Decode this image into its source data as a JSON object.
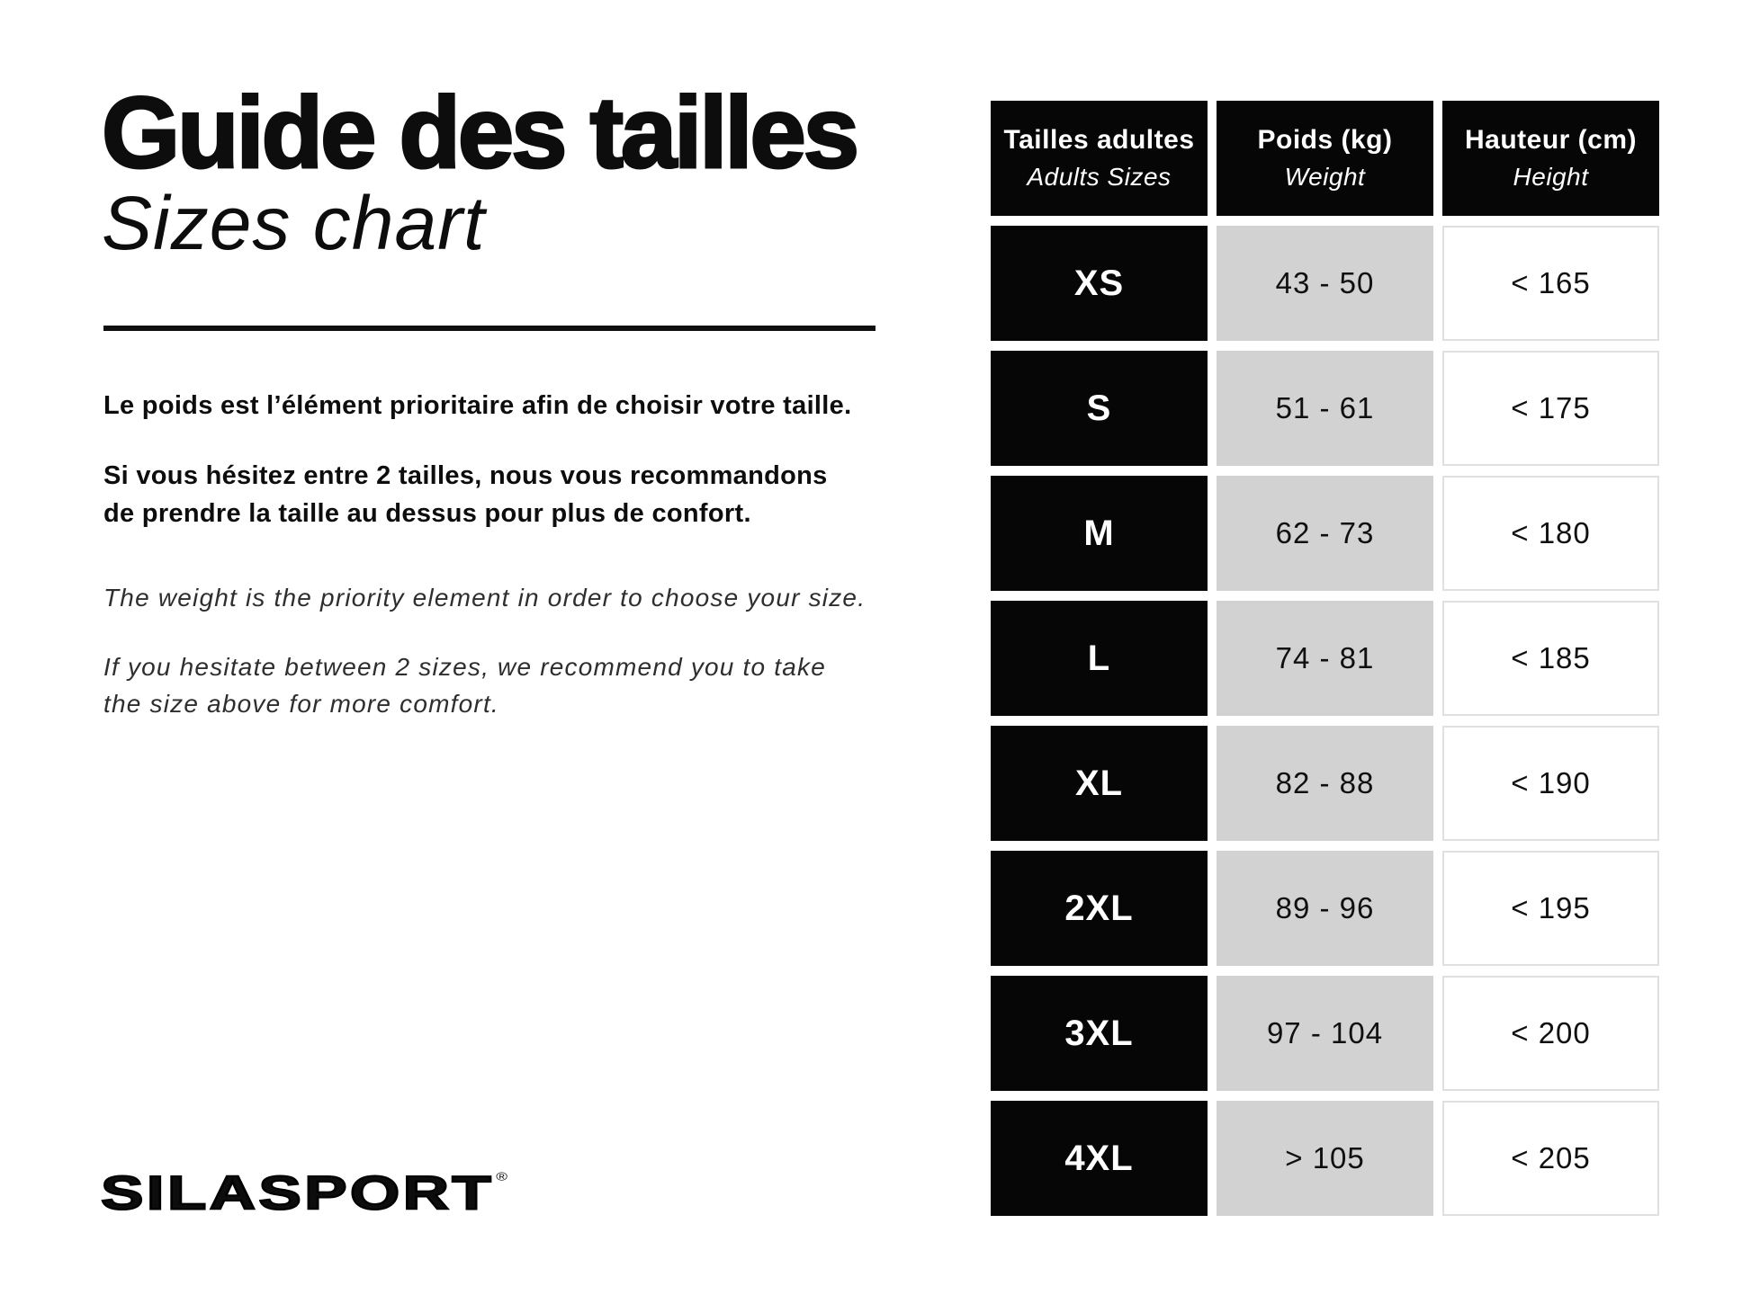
{
  "page": {
    "title_fr": "Guide des tailles",
    "title_en": "Sizes chart"
  },
  "intro": {
    "fr1": "Le poids est l’élément prioritaire afin de choisir votre taille.",
    "fr2_lines": [
      "Si vous hésitez entre 2 tailles, nous vous recommandons",
      "de prendre la taille au dessus pour plus de confort."
    ],
    "en1": "The weight is the priority element in order to choose your size.",
    "en2_lines": [
      "If you hesitate between 2 sizes, we recommend you to take",
      "the size above for more comfort."
    ]
  },
  "table": {
    "headers": [
      {
        "fr": "Tailles adultes",
        "en": "Adults Sizes"
      },
      {
        "fr": "Poids (kg)",
        "en": "Weight"
      },
      {
        "fr": "Hauteur (cm)",
        "en": "Height"
      }
    ],
    "rows": [
      {
        "size": "XS",
        "weight": "43 - 50",
        "height": "< 165"
      },
      {
        "size": "S",
        "weight": "51 - 61",
        "height": "< 175"
      },
      {
        "size": "M",
        "weight": "62 - 73",
        "height": "< 180"
      },
      {
        "size": "L",
        "weight": "74 - 81",
        "height": "< 185"
      },
      {
        "size": "XL",
        "weight": "82 - 88",
        "height": "< 190"
      },
      {
        "size": "2XL",
        "weight": "89 - 96",
        "height": "< 195"
      },
      {
        "size": "3XL",
        "weight": "97 - 104",
        "height": "< 200"
      },
      {
        "size": "4XL",
        "weight": "> 105",
        "height": "< 205"
      }
    ]
  },
  "brand": {
    "logo_text": "SILASPORT",
    "registered": "®"
  },
  "colors": {
    "cell_black": "#060606",
    "cell_gray": "#d2d2d2",
    "cell_white": "#ffffff",
    "cell_border": "#e0e0e0",
    "rule_black": "#101010"
  }
}
